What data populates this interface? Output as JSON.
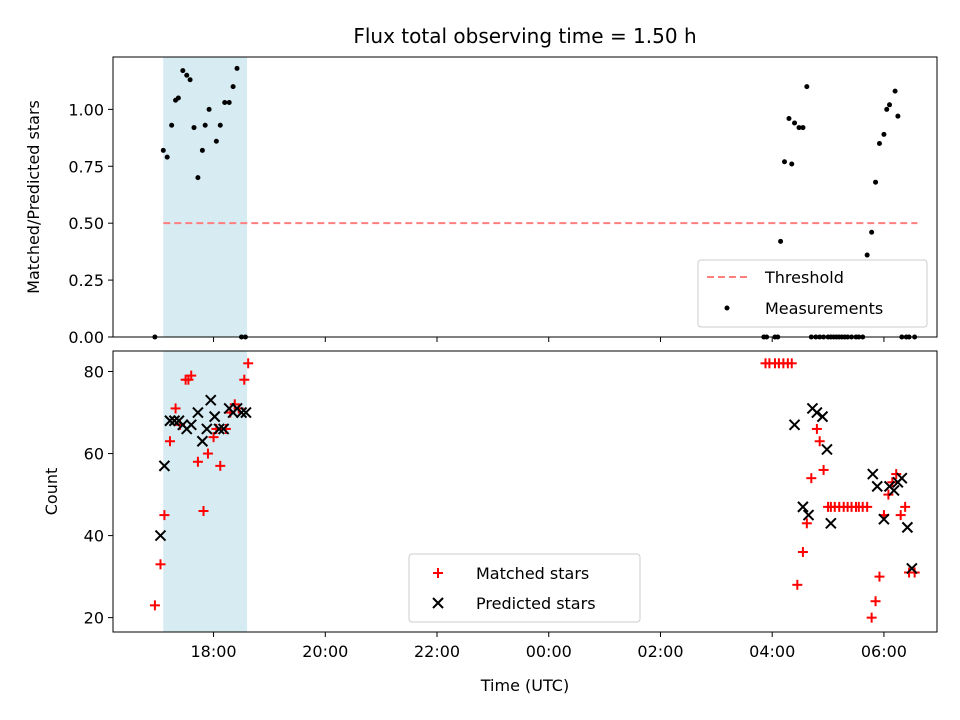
{
  "chart_data": [
    {
      "type": "scatter",
      "title": "Flux total observing time = 1.50 h",
      "xlabel": "",
      "ylabel": "Matched/Predicted stars",
      "ylim": [
        0,
        1.23
      ],
      "yticks": [
        "0.00",
        "0.25",
        "0.50",
        "0.75",
        "1.00"
      ],
      "shaded_x_range": [
        17.1,
        18.6
      ],
      "threshold": {
        "name": "Threshold",
        "value": 0.5,
        "x_range": [
          17.1,
          30.6
        ],
        "color": "#ff7f7f"
      },
      "legend": {
        "placement": "lower right",
        "entries": [
          "Threshold",
          "Measurements"
        ]
      },
      "series": [
        {
          "name": "Measurements",
          "color": "#000000",
          "x": [
            16.95,
            17.1,
            17.17,
            17.25,
            17.32,
            17.37,
            17.45,
            17.52,
            17.58,
            17.65,
            17.72,
            17.8,
            17.85,
            17.92,
            18.05,
            18.12,
            18.2,
            18.28,
            18.35,
            18.42,
            18.5,
            18.57,
            27.85,
            27.9,
            28.05,
            28.1,
            28.15,
            28.22,
            28.3,
            28.35,
            28.4,
            28.48,
            28.55,
            28.62,
            28.7,
            28.78,
            28.85,
            28.92,
            29.0,
            29.05,
            29.1,
            29.15,
            29.2,
            29.25,
            29.3,
            29.35,
            29.42,
            29.5,
            29.55,
            29.62,
            29.7,
            29.78,
            29.85,
            29.92,
            30.0,
            30.05,
            30.1,
            30.2,
            30.25,
            30.32,
            30.4,
            30.45,
            30.55
          ],
          "y": [
            0.0,
            0.82,
            0.79,
            0.93,
            1.04,
            1.05,
            1.17,
            1.15,
            1.13,
            0.92,
            0.7,
            0.82,
            0.93,
            1.0,
            0.86,
            0.93,
            1.03,
            1.03,
            1.1,
            1.18,
            0.0,
            0.0,
            0.0,
            0.0,
            0.0,
            0.0,
            0.42,
            0.77,
            0.96,
            0.76,
            0.94,
            0.92,
            0.92,
            1.1,
            0.0,
            0.0,
            0.0,
            0.0,
            0.0,
            0.0,
            0.0,
            0.0,
            0.0,
            0.0,
            0.0,
            0.0,
            0.0,
            0.0,
            0.0,
            0.0,
            0.36,
            0.46,
            0.68,
            0.85,
            0.89,
            1.0,
            1.02,
            1.08,
            0.97,
            0.0,
            0.0,
            0.0,
            0.0
          ]
        }
      ]
    },
    {
      "type": "scatter",
      "xlabel": "Time (UTC)",
      "ylabel": "Count",
      "ylim": [
        16.5,
        85
      ],
      "yticks": [
        "20",
        "40",
        "60",
        "80"
      ],
      "xticks": [
        {
          "v": 18,
          "label": "18:00"
        },
        {
          "v": 20,
          "label": "20:00"
        },
        {
          "v": 22,
          "label": "22:00"
        },
        {
          "v": 24,
          "label": "00:00"
        },
        {
          "v": 26,
          "label": "02:00"
        },
        {
          "v": 28,
          "label": "04:00"
        },
        {
          "v": 30,
          "label": "06:00"
        }
      ],
      "xlim": [
        16.2,
        30.95
      ],
      "shaded_x_range": [
        17.1,
        18.6
      ],
      "legend": {
        "placement": "lower center",
        "entries": [
          "Matched stars",
          "Predicted stars"
        ]
      },
      "series": [
        {
          "name": "Matched stars",
          "marker": "plus",
          "color": "#ff0000",
          "x": [
            16.95,
            17.05,
            17.12,
            17.22,
            17.32,
            17.4,
            17.5,
            17.55,
            17.6,
            17.72,
            17.82,
            17.9,
            18.0,
            18.05,
            18.12,
            18.22,
            18.3,
            18.38,
            18.45,
            18.55,
            18.62,
            27.88,
            27.95,
            28.05,
            28.12,
            28.2,
            28.28,
            28.35,
            28.45,
            28.55,
            28.62,
            28.7,
            28.8,
            28.85,
            28.92,
            29.0,
            29.05,
            29.12,
            29.2,
            29.28,
            29.35,
            29.42,
            29.5,
            29.55,
            29.62,
            29.7,
            29.78,
            29.85,
            29.92,
            30.0,
            30.08,
            30.15,
            30.22,
            30.3,
            30.38,
            30.45,
            30.55
          ],
          "y": [
            23,
            33,
            45,
            63,
            71,
            67,
            78,
            78,
            79,
            58,
            46,
            60,
            64,
            66,
            57,
            66,
            70,
            72,
            71,
            78,
            82,
            82,
            82,
            82,
            82,
            82,
            82,
            82,
            28,
            36,
            43,
            54,
            66,
            63,
            56,
            47,
            47,
            47,
            47,
            47,
            47,
            47,
            47,
            47,
            47,
            47,
            20,
            24,
            30,
            45,
            50,
            53,
            55,
            45,
            47,
            31,
            31
          ]
        },
        {
          "name": "Predicted stars",
          "marker": "x",
          "color": "#000000",
          "x": [
            17.05,
            17.12,
            17.22,
            17.3,
            17.38,
            17.45,
            17.52,
            17.6,
            17.72,
            17.8,
            17.88,
            17.95,
            18.02,
            18.1,
            18.18,
            18.28,
            18.35,
            18.42,
            18.5,
            18.58,
            28.4,
            28.55,
            28.65,
            28.72,
            28.8,
            28.9,
            28.98,
            29.05,
            29.8,
            29.88,
            30.0,
            30.1,
            30.18,
            30.25,
            30.32,
            30.42,
            30.5
          ],
          "y": [
            40,
            57,
            68,
            68,
            68,
            67,
            66,
            67,
            70,
            63,
            66,
            73,
            69,
            66,
            66,
            71,
            70,
            71,
            70,
            70,
            67,
            47,
            45,
            71,
            70,
            69,
            61,
            43,
            55,
            52,
            44,
            52,
            51,
            53,
            54,
            42,
            32
          ]
        }
      ]
    }
  ]
}
